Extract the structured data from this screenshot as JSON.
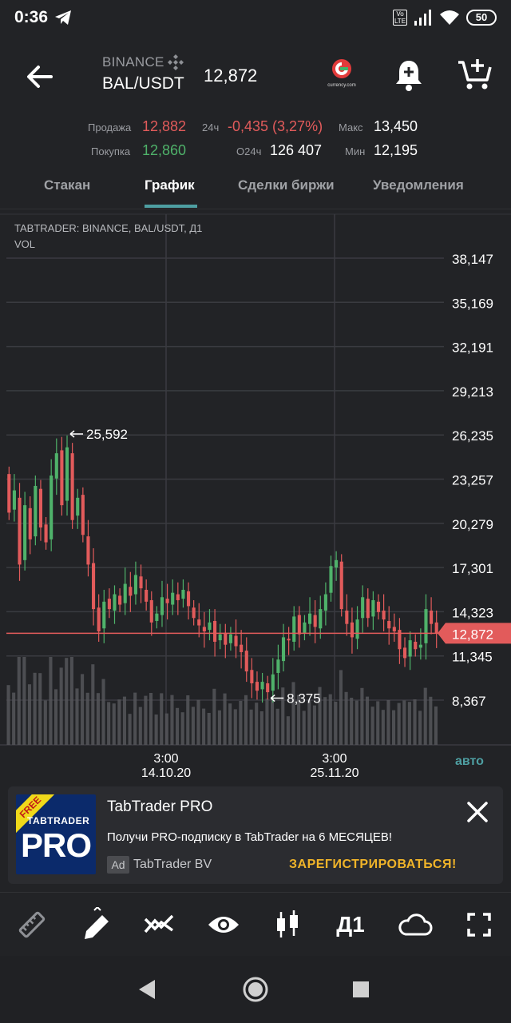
{
  "status": {
    "time": "0:36",
    "battery": "50",
    "volte": "Vo LTE"
  },
  "header": {
    "exchange": "BINANCE",
    "pair": "BAL/USDT",
    "price": "12,872",
    "currency_logo_text": "currency.com"
  },
  "stats": {
    "sell_label": "Продажа",
    "sell_value": "12,882",
    "buy_label": "Покупка",
    "buy_value": "12,860",
    "change_label": "24ч",
    "change_value": "-0,435 (3,27%)",
    "volume_label": "O24ч",
    "volume_value": "126 407",
    "max_label": "Макс",
    "max_value": "13,450",
    "min_label": "Мин",
    "min_value": "12,195"
  },
  "tabs": [
    {
      "label": "Стакан"
    },
    {
      "label": "График"
    },
    {
      "label": "Сделки биржи"
    },
    {
      "label": "Уведомления"
    }
  ],
  "chart": {
    "caption_line1": "TABTRADER: BINANCE, BAL/USDT, Д1",
    "caption_line2": "VOL",
    "auto_label": "авто"
  },
  "chart_data": {
    "type": "candlestick",
    "y_ticks": [
      "38,147",
      "35,169",
      "32,191",
      "29,213",
      "26,235",
      "23,257",
      "20,279",
      "17,301",
      "14,323",
      "11,345",
      "8,367"
    ],
    "x_ticks": [
      {
        "time": "3:00",
        "date": "14.10.20"
      },
      {
        "time": "3:00",
        "date": "25.11.20"
      }
    ],
    "current_price": "12,872",
    "max_annotation": "25,592",
    "min_annotation": "8,375",
    "ylim": [
      8.367,
      38.147
    ],
    "candles_open_close": [
      [
        23.6,
        21.0
      ],
      [
        21.2,
        22.5
      ],
      [
        22.0,
        17.5
      ],
      [
        17.8,
        21.5
      ],
      [
        21.3,
        19.2
      ],
      [
        19.4,
        22.8
      ],
      [
        22.6,
        20.0
      ],
      [
        20.2,
        19.0
      ],
      [
        19.2,
        23.5
      ],
      [
        23.3,
        25.0
      ],
      [
        25.2,
        21.5
      ],
      [
        21.8,
        25.4
      ],
      [
        25.0,
        20.5
      ],
      [
        20.8,
        22.0
      ],
      [
        22.2,
        19.5
      ],
      [
        19.4,
        17.5
      ],
      [
        17.6,
        14.5
      ],
      [
        14.6,
        13.0
      ],
      [
        13.2,
        15.0
      ],
      [
        15.2,
        14.5
      ],
      [
        14.4,
        15.5
      ],
      [
        15.4,
        14.8
      ],
      [
        14.9,
        16.2
      ],
      [
        16.0,
        15.4
      ],
      [
        15.5,
        16.8
      ],
      [
        16.7,
        15.9
      ],
      [
        15.8,
        15.0
      ],
      [
        15.1,
        13.6
      ],
      [
        13.7,
        14.2
      ],
      [
        14.1,
        15.3
      ],
      [
        15.2,
        14.9
      ],
      [
        14.8,
        15.6
      ],
      [
        15.5,
        15.1
      ],
      [
        15.2,
        15.8
      ],
      [
        15.7,
        14.7
      ],
      [
        14.6,
        13.9
      ],
      [
        13.8,
        13.4
      ],
      [
        13.3,
        13.0
      ],
      [
        13.1,
        13.6
      ],
      [
        13.7,
        12.3
      ],
      [
        12.4,
        12.8
      ],
      [
        12.9,
        12.1
      ],
      [
        12.2,
        12.8
      ],
      [
        12.7,
        12.0
      ],
      [
        12.1,
        11.6
      ],
      [
        11.7,
        10.3
      ],
      [
        10.4,
        9.5
      ],
      [
        9.6,
        9.0
      ],
      [
        9.1,
        9.6
      ],
      [
        9.5,
        8.9
      ],
      [
        9.0,
        10.1
      ],
      [
        10.2,
        11.1
      ],
      [
        11.0,
        12.6
      ],
      [
        12.5,
        12.4
      ],
      [
        12.3,
        14.0
      ],
      [
        14.1,
        12.8
      ],
      [
        12.9,
        13.6
      ],
      [
        13.5,
        14.2
      ],
      [
        14.1,
        13.3
      ],
      [
        13.2,
        14.5
      ],
      [
        14.4,
        15.5
      ],
      [
        15.6,
        17.4
      ],
      [
        17.3,
        17.8
      ],
      [
        17.7,
        14.5
      ],
      [
        14.4,
        13.5
      ],
      [
        13.6,
        12.6
      ],
      [
        12.5,
        13.8
      ],
      [
        13.9,
        15.3
      ],
      [
        15.2,
        13.9
      ],
      [
        14.0,
        15.1
      ],
      [
        15.0,
        14.3
      ],
      [
        14.4,
        13.8
      ],
      [
        13.7,
        13.2
      ],
      [
        13.3,
        13.0
      ],
      [
        13.1,
        11.8
      ],
      [
        11.9,
        11.2
      ],
      [
        11.3,
        12.4
      ],
      [
        12.3,
        11.8
      ],
      [
        11.9,
        12.1
      ],
      [
        12.2,
        14.5
      ],
      [
        14.4,
        13.5
      ],
      [
        13.6,
        12.872
      ]
    ]
  },
  "ad": {
    "title": "TabTrader PRO",
    "text": "Получи PRO-подписку в TabTrader на 6 МЕСЯЦЕВ!",
    "badge": "Ad",
    "advertiser": "TabTrader BV",
    "cta": "ЗАРЕГИСТРИРОВАТЬСЯ!",
    "logo_free": "FREE",
    "logo_brand": "TABTRADER",
    "logo_pro": "PRO"
  },
  "toolbar": {
    "timeframe": "Д1"
  }
}
